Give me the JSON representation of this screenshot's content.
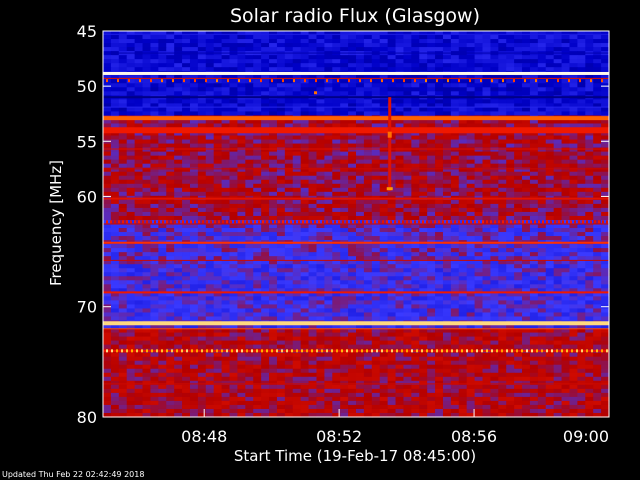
{
  "chart_data": {
    "type": "heatmap",
    "title": "Solar radio Flux (Glasgow)",
    "xlabel": "Start Time (19-Feb-17 08:45:00)",
    "ylabel": "Frequency [MHz]",
    "x_ticks": [
      "08:48",
      "08:52",
      "08:56",
      "09:00"
    ],
    "x_tick_minutes": [
      3,
      7,
      11,
      15
    ],
    "xlim_minutes": [
      0,
      15
    ],
    "y_ticks": [
      45,
      50,
      55,
      60,
      70,
      80
    ],
    "ylim": [
      45,
      80
    ],
    "colormap": [
      "#000050",
      "#0000c8",
      "#3a3aff",
      "#b40000",
      "#ff1e00",
      "#ffb400",
      "#ffffff"
    ]
  },
  "footer": "Updated Thu Feb 22 02:42:49 2018"
}
